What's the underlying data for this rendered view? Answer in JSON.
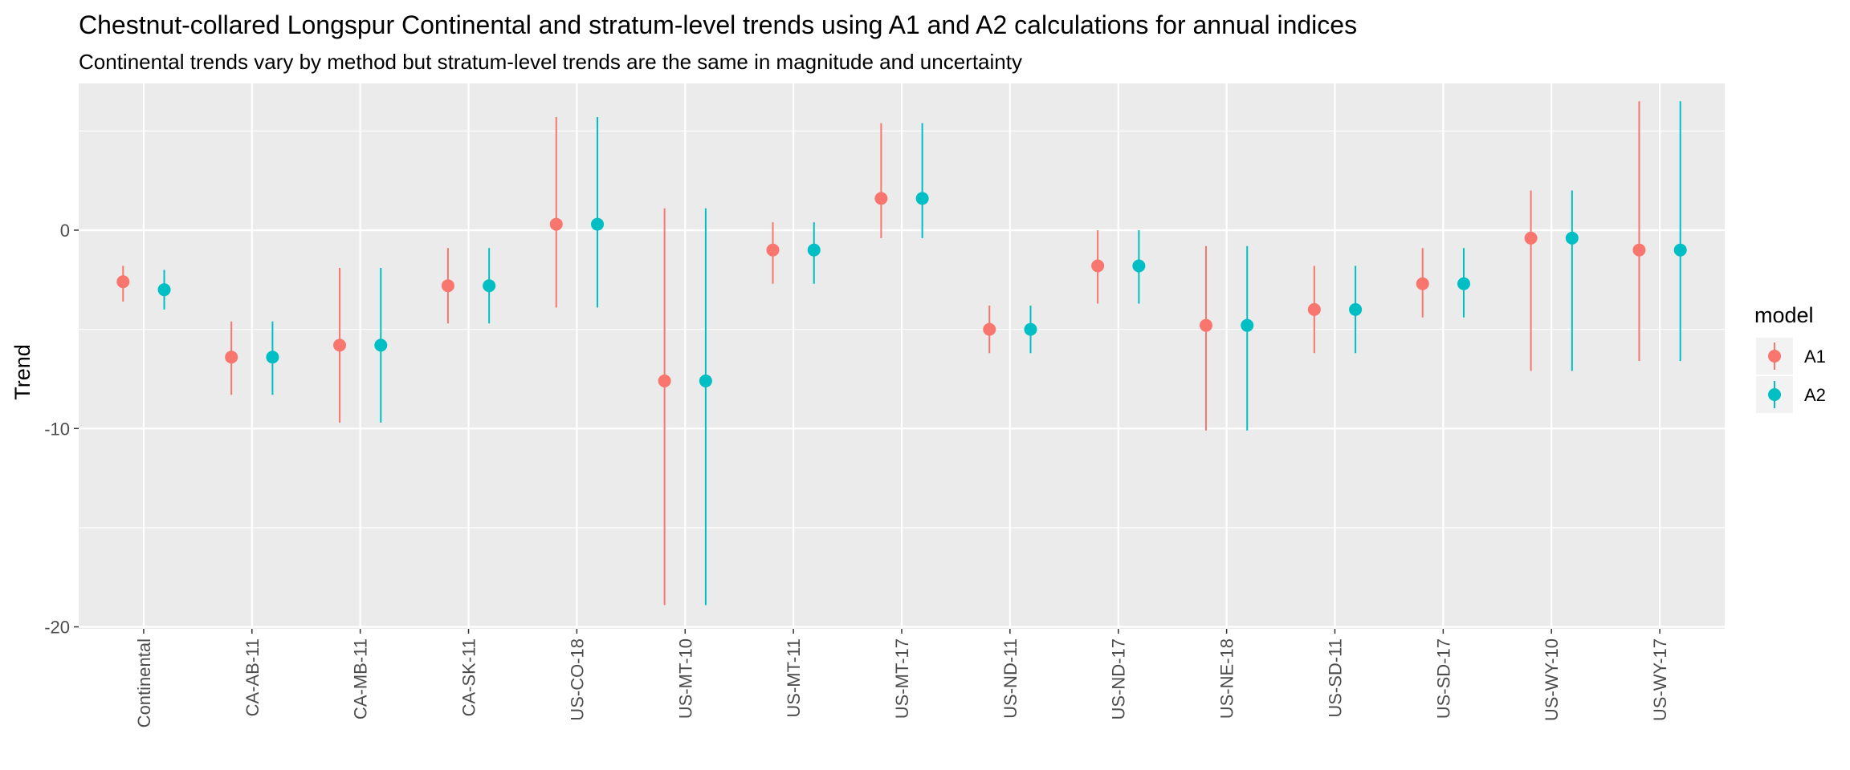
{
  "chart_data": {
    "type": "scatter",
    "title": "Chestnut-collared Longspur Continental and stratum-level trends using A1 and A2 calculations for annual indices",
    "subtitle": "Continental trends vary by method but stratum-level trends are the same in magnitude and uncertainty",
    "xlabel": "",
    "ylabel": "Trend",
    "ylim": [
      -20.1,
      7.4
    ],
    "yticks": [
      0,
      -10,
      -20
    ],
    "grid": true,
    "legend": {
      "title": "model",
      "placement": "right"
    },
    "categories": [
      "Continental",
      "CA-AB-11",
      "CA-MB-11",
      "CA-SK-11",
      "US-CO-18",
      "US-MT-10",
      "US-MT-11",
      "US-MT-17",
      "US-ND-11",
      "US-ND-17",
      "US-NE-18",
      "US-SD-11",
      "US-SD-17",
      "US-WY-10",
      "US-WY-17"
    ],
    "series": [
      {
        "name": "A1",
        "color": "#F8766D",
        "values": [
          -2.6,
          -6.4,
          -5.8,
          -2.8,
          0.3,
          -7.6,
          -1.0,
          1.6,
          -5.0,
          -1.8,
          -4.8,
          -4.0,
          -2.7,
          -0.4,
          -1.0
        ],
        "lower": [
          -3.6,
          -8.3,
          -9.7,
          -4.7,
          -3.9,
          -18.9,
          -2.7,
          -0.4,
          -6.2,
          -3.7,
          -10.1,
          -6.2,
          -4.4,
          -7.1,
          -6.6
        ],
        "upper": [
          -1.8,
          -4.6,
          -1.9,
          -0.9,
          5.7,
          1.1,
          0.4,
          5.4,
          -3.8,
          0.0,
          -0.8,
          -1.8,
          -0.9,
          2.0,
          6.5
        ]
      },
      {
        "name": "A2",
        "color": "#00BFC4",
        "values": [
          -3.0,
          -6.4,
          -5.8,
          -2.8,
          0.3,
          -7.6,
          -1.0,
          1.6,
          -5.0,
          -1.8,
          -4.8,
          -4.0,
          -2.7,
          -0.4,
          -1.0
        ],
        "lower": [
          -4.0,
          -8.3,
          -9.7,
          -4.7,
          -3.9,
          -18.9,
          -2.7,
          -0.4,
          -6.2,
          -3.7,
          -10.1,
          -6.2,
          -4.4,
          -7.1,
          -6.6
        ],
        "upper": [
          -2.0,
          -4.6,
          -1.9,
          -0.9,
          5.7,
          1.1,
          0.4,
          5.4,
          -3.8,
          0.0,
          -0.8,
          -1.8,
          -0.9,
          2.0,
          6.5
        ]
      }
    ]
  }
}
